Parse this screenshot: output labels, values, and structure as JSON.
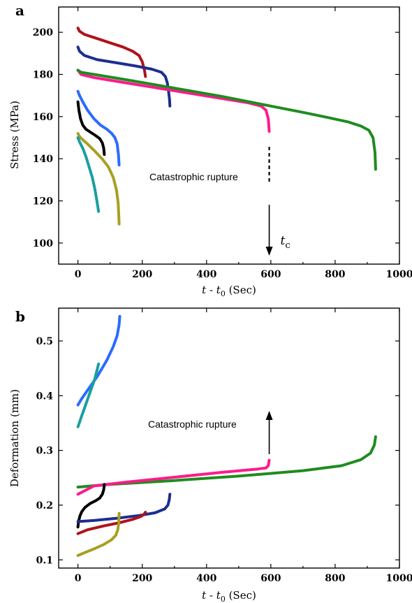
{
  "chart_data": [
    {
      "type": "line",
      "panel": "a",
      "xlabel": {
        "pre": "t - t",
        "sub": "0",
        "post": " (Sec)"
      },
      "ylabel": "Stress (MPa)",
      "xlim": [
        -60,
        1000
      ],
      "ylim": [
        90,
        212
      ],
      "xticks": [
        0,
        200,
        400,
        600,
        800,
        1000
      ],
      "yticks": [
        100,
        120,
        140,
        160,
        180,
        200
      ],
      "annotation": "Catastrophic rupture",
      "marker_label": {
        "main": "t",
        "sub": "c"
      },
      "marker_x": 595,
      "series": [
        {
          "color": "#b0121b",
          "x": [
            0,
            5,
            20,
            60,
            100,
            140,
            170,
            190,
            200,
            207,
            210
          ],
          "y": [
            202,
            200.5,
            199,
            197,
            195,
            193,
            191,
            189,
            186,
            182,
            179
          ]
        },
        {
          "color": "#1c2e8f",
          "x": [
            0,
            5,
            20,
            60,
            120,
            180,
            230,
            260,
            272,
            278,
            282,
            285,
            286
          ],
          "y": [
            193,
            191,
            189,
            187,
            185.5,
            184,
            182.5,
            181,
            179,
            176,
            172,
            168,
            165
          ]
        },
        {
          "color": "#ff1a8c",
          "x": [
            0,
            10,
            50,
            150,
            250,
            350,
            450,
            530,
            570,
            585,
            592,
            595
          ],
          "y": [
            182,
            180,
            178.5,
            176,
            173.5,
            171,
            168.5,
            166.5,
            165,
            163,
            159,
            153
          ]
        },
        {
          "color": "#1e8c1e",
          "x": [
            0,
            10,
            50,
            150,
            300,
            450,
            600,
            700,
            780,
            840,
            880,
            905,
            918,
            924,
            926
          ],
          "y": [
            182,
            181,
            180,
            177.5,
            173.5,
            169.5,
            165,
            162,
            159.5,
            157.5,
            155.5,
            153.5,
            150,
            143,
            135
          ]
        },
        {
          "color": "#2b6bff",
          "x": [
            0,
            5,
            15,
            30,
            50,
            70,
            90,
            105,
            115,
            122,
            126,
            128
          ],
          "y": [
            172,
            170,
            167,
            163,
            159,
            156,
            154,
            152,
            150,
            147,
            142,
            137
          ]
        },
        {
          "color": "#000000",
          "x": [
            0,
            3,
            8,
            15,
            25,
            40,
            55,
            68,
            76,
            80,
            82
          ],
          "y": [
            167,
            163,
            159,
            156,
            154,
            152.5,
            151,
            149.5,
            147.5,
            145,
            142
          ]
        },
        {
          "color": "#a8a020",
          "x": [
            0,
            5,
            15,
            30,
            50,
            75,
            95,
            110,
            120,
            125,
            127,
            128
          ],
          "y": [
            152,
            150.5,
            149,
            147,
            144,
            140,
            136,
            131,
            125,
            119,
            113,
            109
          ]
        },
        {
          "color": "#1a9f9f",
          "x": [
            0,
            5,
            15,
            25,
            35,
            45,
            52,
            58,
            62,
            64
          ],
          "y": [
            150,
            148,
            145,
            141,
            136,
            131,
            126,
            121,
            117,
            115
          ]
        }
      ]
    },
    {
      "type": "line",
      "panel": "b",
      "xlabel": {
        "pre": "t - t",
        "sub": "0",
        "post": " (Sec)"
      },
      "ylabel": "Deformation (mm)",
      "xlim": [
        -60,
        1000
      ],
      "ylim": [
        0.085,
        0.56
      ],
      "xticks": [
        0,
        200,
        400,
        600,
        800,
        1000
      ],
      "yticks": [
        0.1,
        0.2,
        0.3,
        0.4,
        0.5
      ],
      "annotation": "Catastrophic rupture",
      "marker_x": 595,
      "series": [
        {
          "color": "#2b6bff",
          "x": [
            0,
            10,
            30,
            60,
            90,
            110,
            122,
            128,
            130
          ],
          "y": [
            0.383,
            0.393,
            0.41,
            0.435,
            0.465,
            0.49,
            0.51,
            0.53,
            0.545
          ]
        },
        {
          "color": "#1a9f9f",
          "x": [
            0,
            10,
            25,
            40,
            52,
            60,
            64
          ],
          "y": [
            0.343,
            0.36,
            0.385,
            0.41,
            0.43,
            0.448,
            0.458
          ]
        },
        {
          "color": "#1e8c1e",
          "x": [
            0,
            100,
            300,
            500,
            700,
            820,
            880,
            910,
            922,
            926
          ],
          "y": [
            0.233,
            0.238,
            0.245,
            0.253,
            0.263,
            0.272,
            0.283,
            0.295,
            0.31,
            0.325
          ]
        },
        {
          "color": "#ff1a8c",
          "x": [
            0,
            50,
            150,
            300,
            450,
            560,
            585,
            592,
            595
          ],
          "y": [
            0.22,
            0.235,
            0.242,
            0.251,
            0.26,
            0.266,
            0.268,
            0.272,
            0.282
          ]
        },
        {
          "color": "#000000",
          "x": [
            0,
            2,
            6,
            12,
            22,
            38,
            55,
            68,
            76,
            80,
            82
          ],
          "y": [
            0.16,
            0.17,
            0.18,
            0.188,
            0.196,
            0.203,
            0.208,
            0.213,
            0.22,
            0.228,
            0.238
          ]
        },
        {
          "color": "#1c2e8f",
          "x": [
            0,
            50,
            120,
            190,
            240,
            270,
            280,
            284,
            286
          ],
          "y": [
            0.17,
            0.172,
            0.176,
            0.181,
            0.186,
            0.193,
            0.2,
            0.21,
            0.22
          ]
        },
        {
          "color": "#b0121b",
          "x": [
            0,
            30,
            80,
            130,
            170,
            195,
            205,
            210
          ],
          "y": [
            0.148,
            0.155,
            0.162,
            0.168,
            0.174,
            0.179,
            0.183,
            0.187
          ]
        },
        {
          "color": "#a8a020",
          "x": [
            0,
            20,
            50,
            80,
            105,
            118,
            124,
            127,
            128
          ],
          "y": [
            0.108,
            0.113,
            0.12,
            0.128,
            0.137,
            0.145,
            0.155,
            0.168,
            0.185
          ]
        }
      ]
    }
  ]
}
